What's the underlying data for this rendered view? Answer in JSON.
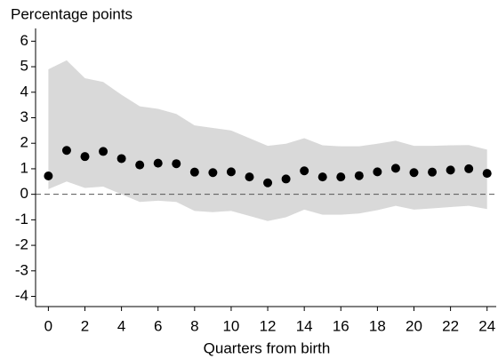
{
  "chart_data": {
    "type": "scatter",
    "title": "Percentage points",
    "x_label": "Quarters from birth",
    "x": [
      0,
      1,
      2,
      3,
      4,
      5,
      6,
      7,
      8,
      9,
      10,
      11,
      12,
      13,
      14,
      15,
      16,
      17,
      18,
      19,
      20,
      21,
      22,
      23,
      24
    ],
    "values": [
      0.72,
      1.72,
      1.48,
      1.68,
      1.4,
      1.15,
      1.22,
      1.2,
      0.87,
      0.85,
      0.88,
      0.68,
      0.45,
      0.6,
      0.92,
      0.68,
      0.68,
      0.73,
      0.88,
      1.02,
      0.85,
      0.87,
      0.95,
      1.0,
      0.82
    ],
    "ci_upper": [
      4.9,
      5.25,
      4.55,
      4.4,
      3.9,
      3.45,
      3.35,
      3.15,
      2.7,
      2.6,
      2.5,
      2.2,
      1.9,
      1.98,
      2.2,
      1.92,
      1.88,
      1.88,
      1.98,
      2.1,
      1.9,
      1.9,
      1.92,
      1.93,
      1.75
    ],
    "ci_lower": [
      0.2,
      0.5,
      0.25,
      0.3,
      0.0,
      -0.3,
      -0.25,
      -0.3,
      -0.65,
      -0.7,
      -0.65,
      -0.85,
      -1.05,
      -0.9,
      -0.6,
      -0.8,
      -0.8,
      -0.75,
      -0.62,
      -0.45,
      -0.6,
      -0.55,
      -0.5,
      -0.45,
      -0.58
    ],
    "color": "#000000",
    "band_color": "#d9d9d9",
    "reference_line": 0,
    "xlim": [
      -0.7,
      24.5
    ],
    "ylim": [
      -4.4,
      6.5
    ],
    "xticks": [
      0,
      2,
      4,
      6,
      8,
      10,
      12,
      14,
      16,
      18,
      20,
      22,
      24
    ],
    "yticks": [
      -4,
      -3,
      -2,
      -1,
      0,
      1,
      2,
      3,
      4,
      5,
      6
    ]
  }
}
